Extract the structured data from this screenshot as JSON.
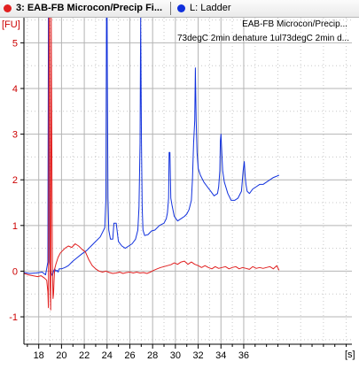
{
  "tabs": [
    {
      "index_label": "3: EAB-FB Microcon/Precip Fi...",
      "color": "#e11f1f"
    },
    {
      "index_label": "L: Ladder",
      "color": "#1030dd"
    }
  ],
  "chart_data": {
    "type": "line",
    "ylabel": "[FU]",
    "xlabel": "[s]",
    "xlim": [
      16.7,
      45.5
    ],
    "ylim": [
      -1.6,
      5.55
    ],
    "x_ticks": [
      18,
      20,
      22,
      24,
      26,
      28,
      30,
      32,
      34,
      36
    ],
    "y_ticks": [
      -1,
      0,
      1,
      2,
      3,
      4,
      5
    ],
    "grid": true,
    "legend_lines": [
      "EAB-FB Microcon/Precip...",
      "73degC 2min denature 1ul73degC 2min d..."
    ],
    "series": [
      {
        "color": "#1030dd",
        "x": [
          16.7,
          17.2,
          17.8,
          18.3,
          18.6,
          18.8,
          18.85,
          18.9,
          18.95,
          19.1,
          19.2,
          19.3,
          19.4,
          19.5,
          19.6,
          19.7,
          19.8,
          20.0,
          20.3,
          20.6,
          21.0,
          21.4,
          21.8,
          22.2,
          22.6,
          23.0,
          23.4,
          23.8,
          23.9,
          23.95,
          24.0,
          24.08,
          24.15,
          24.3,
          24.5,
          24.6,
          24.8,
          25.0,
          25.3,
          25.6,
          25.9,
          26.2,
          26.5,
          26.7,
          26.8,
          26.9,
          26.95,
          27.02,
          27.08,
          27.15,
          27.3,
          27.6,
          27.9,
          28.2,
          28.6,
          29.0,
          29.2,
          29.3,
          29.4,
          29.45,
          29.52,
          29.6,
          29.7,
          29.9,
          30.2,
          30.5,
          30.8,
          31.0,
          31.2,
          31.4,
          31.5,
          31.6,
          31.7,
          31.75,
          31.82,
          31.9,
          32.0,
          32.2,
          32.5,
          32.8,
          33.1,
          33.4,
          33.7,
          33.8,
          33.9,
          33.95,
          34.0,
          34.07,
          34.15,
          34.3,
          34.6,
          34.9,
          35.2,
          35.5,
          35.8,
          35.95,
          36.05,
          36.12,
          36.2,
          36.3,
          36.5,
          36.8,
          37.1,
          37.4,
          37.7,
          38.0,
          38.3,
          38.6,
          38.9,
          39.1
        ],
        "y": [
          -0.03,
          -0.05,
          -0.04,
          -0.02,
          -0.08,
          0.2,
          5.55,
          5.55,
          0.2,
          -0.05,
          -0.1,
          0.0,
          0.05,
          0.0,
          0.02,
          -0.02,
          0.05,
          0.05,
          0.08,
          0.12,
          0.22,
          0.3,
          0.38,
          0.45,
          0.55,
          0.65,
          0.75,
          0.95,
          1.6,
          5.55,
          5.55,
          1.6,
          0.9,
          0.7,
          0.7,
          1.05,
          1.05,
          0.65,
          0.55,
          0.5,
          0.55,
          0.6,
          0.7,
          0.9,
          1.4,
          2.8,
          5.55,
          2.8,
          1.4,
          0.9,
          0.78,
          0.8,
          0.88,
          0.9,
          1.0,
          1.05,
          1.15,
          1.28,
          1.6,
          2.6,
          2.6,
          1.6,
          1.45,
          1.2,
          1.1,
          1.15,
          1.2,
          1.25,
          1.35,
          1.55,
          2.0,
          2.8,
          3.3,
          4.45,
          3.3,
          2.6,
          2.25,
          2.1,
          1.95,
          1.85,
          1.75,
          1.65,
          1.7,
          1.85,
          2.2,
          2.85,
          3.0,
          2.6,
          2.2,
          1.95,
          1.7,
          1.55,
          1.55,
          1.6,
          1.75,
          2.2,
          2.4,
          2.1,
          1.9,
          1.75,
          1.7,
          1.8,
          1.85,
          1.9,
          1.9,
          1.95,
          2.0,
          2.05,
          2.08,
          2.1
        ]
      },
      {
        "color": "#e11f1f",
        "x": [
          16.7,
          17.1,
          17.5,
          17.9,
          18.2,
          18.5,
          18.7,
          18.8,
          18.85,
          18.9,
          18.95,
          19.0,
          19.05,
          19.1,
          19.2,
          19.25,
          19.3,
          19.35,
          19.4,
          19.5,
          19.7,
          19.9,
          20.1,
          20.3,
          20.6,
          20.9,
          21.2,
          21.5,
          21.8,
          22.1,
          22.4,
          22.7,
          23.0,
          23.3,
          23.6,
          23.9,
          24.2,
          24.5,
          24.8,
          25.1,
          25.4,
          25.7,
          26.0,
          26.3,
          26.6,
          26.9,
          27.2,
          27.5,
          27.8,
          28.1,
          28.4,
          28.7,
          29.0,
          29.3,
          29.6,
          29.9,
          30.2,
          30.5,
          30.8,
          31.1,
          31.4,
          31.7,
          32.0,
          32.3,
          32.6,
          32.9,
          33.2,
          33.5,
          33.8,
          34.1,
          34.4,
          34.7,
          35.0,
          35.3,
          35.6,
          35.9,
          36.2,
          36.5,
          36.8,
          37.1,
          37.4,
          37.7,
          38.0,
          38.3,
          38.6,
          38.9,
          39.1
        ],
        "y": [
          -0.05,
          -0.08,
          -0.1,
          -0.12,
          -0.1,
          -0.15,
          -0.2,
          -0.45,
          -0.8,
          5.55,
          5.55,
          -0.3,
          -0.85,
          5.55,
          0.15,
          -0.6,
          -0.5,
          -0.2,
          0.05,
          0.15,
          0.3,
          0.4,
          0.45,
          0.5,
          0.55,
          0.52,
          0.6,
          0.55,
          0.48,
          0.42,
          0.25,
          0.12,
          0.05,
          0.0,
          -0.02,
          0.0,
          -0.03,
          -0.05,
          -0.04,
          -0.02,
          -0.05,
          -0.03,
          -0.02,
          -0.04,
          -0.02,
          -0.04,
          -0.03,
          -0.05,
          -0.02,
          0.02,
          0.05,
          0.08,
          0.1,
          0.12,
          0.14,
          0.18,
          0.15,
          0.2,
          0.22,
          0.15,
          0.2,
          0.15,
          0.12,
          0.08,
          0.12,
          0.08,
          0.05,
          0.1,
          0.06,
          0.08,
          0.1,
          0.05,
          0.08,
          0.1,
          0.05,
          0.08,
          0.06,
          0.04,
          0.1,
          0.06,
          0.08,
          0.06,
          0.08,
          0.1,
          0.05,
          0.12,
          0.02
        ]
      }
    ]
  }
}
